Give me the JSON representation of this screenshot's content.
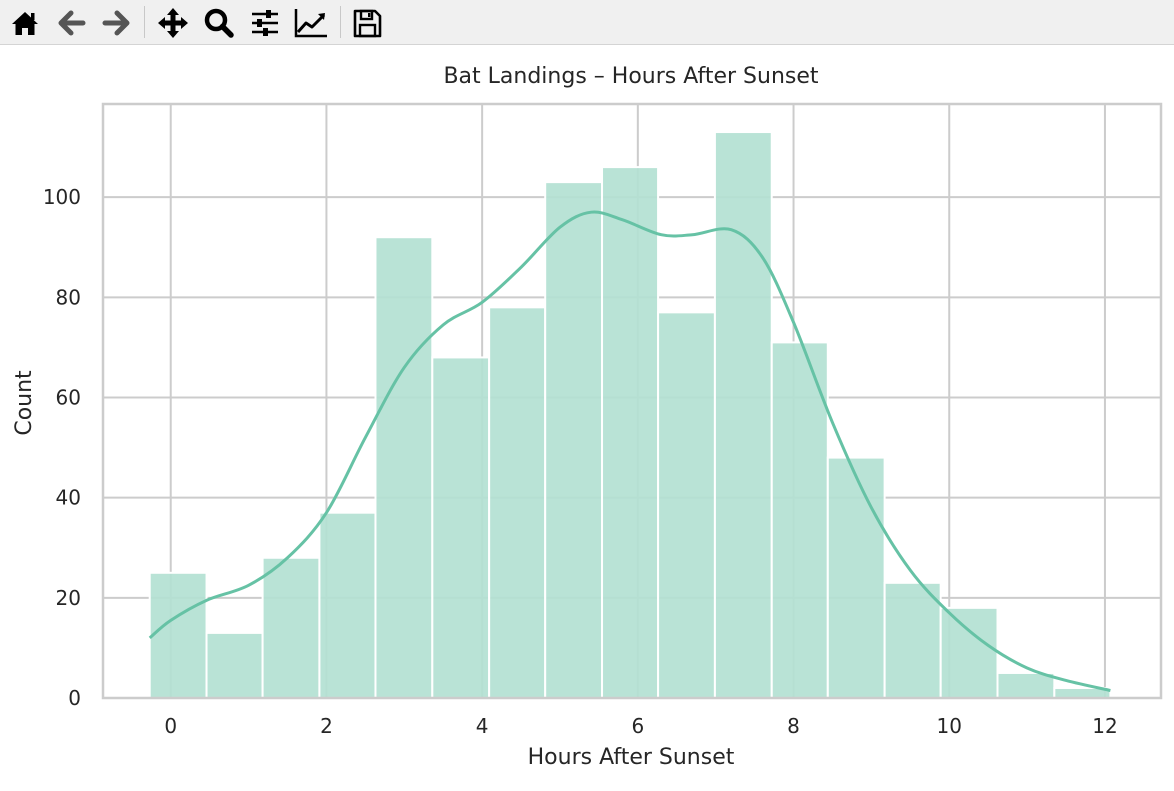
{
  "toolbar": {
    "buttons": [
      {
        "name": "home-icon"
      },
      {
        "name": "back-icon"
      },
      {
        "name": "forward-icon"
      },
      {
        "name": "pan-icon"
      },
      {
        "name": "zoom-icon"
      },
      {
        "name": "configure-subplots-icon"
      },
      {
        "name": "edit-axis-icon"
      },
      {
        "name": "save-icon"
      }
    ]
  },
  "colors": {
    "bar_fill": "#b3e1d2",
    "kde_line": "#66c2a5",
    "grid": "#cccccc",
    "axes_edge": "#cccccc",
    "text": "#262626",
    "toolbar_bg": "#f0f0f0"
  },
  "chart_data": {
    "type": "bar",
    "title": "Bat Landings – Hours After Sunset",
    "xlabel": "Hours After Sunset",
    "ylabel": "Count",
    "xlim": [
      -0.87,
      12.72
    ],
    "ylim": [
      0,
      118.6
    ],
    "xticks": [
      0,
      2,
      4,
      6,
      8,
      10,
      12
    ],
    "yticks": [
      0,
      20,
      40,
      60,
      80,
      100
    ],
    "grid": true,
    "bins": [
      {
        "x0": -0.27,
        "x1": 0.46,
        "count": 25
      },
      {
        "x0": 0.46,
        "x1": 1.18,
        "count": 13
      },
      {
        "x0": 1.18,
        "x1": 1.91,
        "count": 28
      },
      {
        "x0": 1.91,
        "x1": 2.63,
        "count": 37
      },
      {
        "x0": 2.63,
        "x1": 3.36,
        "count": 92
      },
      {
        "x0": 3.36,
        "x1": 4.09,
        "count": 68
      },
      {
        "x0": 4.09,
        "x1": 4.81,
        "count": 78
      },
      {
        "x0": 4.81,
        "x1": 5.54,
        "count": 103
      },
      {
        "x0": 5.54,
        "x1": 6.26,
        "count": 106
      },
      {
        "x0": 6.26,
        "x1": 6.99,
        "count": 77
      },
      {
        "x0": 6.99,
        "x1": 7.72,
        "count": 113
      },
      {
        "x0": 7.72,
        "x1": 8.44,
        "count": 71
      },
      {
        "x0": 8.44,
        "x1": 9.17,
        "count": 48
      },
      {
        "x0": 9.17,
        "x1": 9.89,
        "count": 23
      },
      {
        "x0": 9.89,
        "x1": 10.62,
        "count": 18
      },
      {
        "x0": 10.62,
        "x1": 11.35,
        "count": 5
      },
      {
        "x0": 11.35,
        "x1": 12.07,
        "count": 2
      }
    ],
    "kde": {
      "x": [
        -0.27,
        0.0,
        0.46,
        1.0,
        1.5,
        2.0,
        2.5,
        3.0,
        3.5,
        4.0,
        4.5,
        5.0,
        5.4,
        5.8,
        6.3,
        6.7,
        7.2,
        7.6,
        8.0,
        8.5,
        9.0,
        9.5,
        10.0,
        10.5,
        11.0,
        11.5,
        12.07
      ],
      "y": [
        12,
        15.5,
        19.5,
        22.5,
        28,
        37,
        52,
        66,
        74.5,
        79,
        86,
        94,
        97,
        95.5,
        92.5,
        92.5,
        93.5,
        88,
        75,
        55,
        38,
        25.5,
        17,
        10.5,
        6,
        3.5,
        1.5
      ]
    }
  }
}
